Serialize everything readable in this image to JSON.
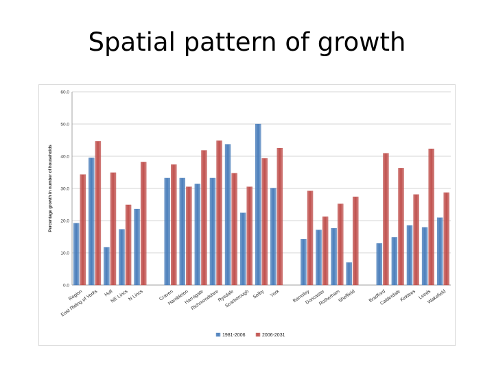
{
  "slide": {
    "title": "Spatial pattern of growth"
  },
  "chart_data": {
    "type": "bar",
    "title": "",
    "xlabel": "",
    "ylabel": "Percentage growth in number of households",
    "ylim": [
      0,
      60
    ],
    "yticks": [
      "0.0",
      "10.0",
      "20.0",
      "30.0",
      "40.0",
      "50.0",
      "60.0"
    ],
    "grid": true,
    "legend_position": "bottom",
    "colors": [
      "#4a7ebb",
      "#c0504d"
    ],
    "categories": [
      "Region",
      "East Riding of Yorks",
      "Hull",
      "NE Lincs",
      "N Lincs",
      "",
      "Craven",
      "Hambleton",
      "Harrogate",
      "Richmondshire",
      "Ryedale",
      "Scarborough",
      "Selby",
      "York",
      "",
      "Barnsley",
      "Doncaster",
      "Rotherham",
      "Sheffield",
      "",
      "Bradford",
      "Calderdale",
      "Kirklees",
      "Leeds",
      "Wakefield"
    ],
    "series": [
      {
        "name": "1981-2006",
        "values": [
          19.2,
          39.5,
          11.7,
          17.3,
          23.6,
          null,
          33.2,
          33.2,
          31.4,
          33.2,
          43.7,
          22.4,
          50.0,
          30.1,
          null,
          14.2,
          17.1,
          17.6,
          7.0,
          null,
          12.9,
          14.8,
          18.5,
          17.9,
          20.9
        ]
      },
      {
        "name": "2006-2031",
        "values": [
          34.3,
          44.6,
          34.9,
          24.9,
          38.2,
          null,
          37.4,
          30.5,
          41.8,
          44.8,
          34.7,
          30.5,
          39.3,
          42.5,
          null,
          29.2,
          21.2,
          25.2,
          27.4,
          null,
          40.9,
          36.3,
          28.1,
          42.3,
          28.7
        ]
      }
    ]
  }
}
